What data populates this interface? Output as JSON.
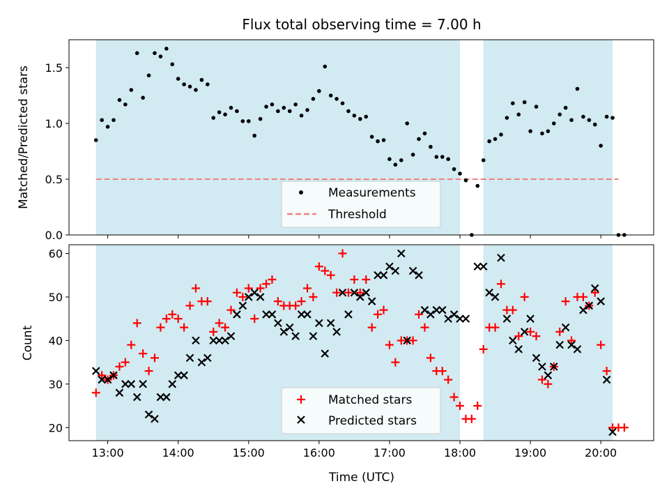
{
  "chart_data": [
    {
      "type": "scatter",
      "title": "Flux total observing time = 7.00 h",
      "xlabel": "",
      "ylabel": "Matched/Predicted stars",
      "xlim": [
        "12:27",
        "20:45"
      ],
      "ylim": [
        0,
        1.75
      ],
      "yticks": [
        0.0,
        0.5,
        1.0,
        1.5
      ],
      "ytick_labels": [
        "0.0",
        "0.5",
        "1.0",
        "1.5"
      ],
      "observing_windows": [
        [
          "12:50",
          "18:00"
        ],
        [
          "18:20",
          "20:10"
        ]
      ],
      "window_color": "#add8e6",
      "threshold": {
        "name": "Threshold",
        "value": 0.5,
        "color": "#f08080",
        "style": "dashed",
        "x_range": [
          "12:50",
          "20:15"
        ]
      },
      "legend": {
        "position": "lower-center",
        "entries": [
          "Measurements",
          "Threshold"
        ]
      },
      "series": [
        {
          "name": "Measurements",
          "marker": "dot",
          "color": "#000000",
          "x": [
            "12:50",
            "12:55",
            "13:00",
            "13:05",
            "13:10",
            "13:15",
            "13:20",
            "13:25",
            "13:30",
            "13:35",
            "13:40",
            "13:45",
            "13:50",
            "13:55",
            "14:00",
            "14:05",
            "14:10",
            "14:15",
            "14:20",
            "14:25",
            "14:30",
            "14:35",
            "14:40",
            "14:45",
            "14:50",
            "14:55",
            "15:00",
            "15:05",
            "15:10",
            "15:15",
            "15:20",
            "15:25",
            "15:30",
            "15:35",
            "15:40",
            "15:45",
            "15:50",
            "15:55",
            "16:00",
            "16:05",
            "16:10",
            "16:15",
            "16:20",
            "16:25",
            "16:30",
            "16:35",
            "16:40",
            "16:45",
            "16:50",
            "16:55",
            "17:00",
            "17:05",
            "17:10",
            "17:15",
            "17:20",
            "17:25",
            "17:30",
            "17:35",
            "17:40",
            "17:45",
            "17:50",
            "17:55",
            "18:00",
            "18:05",
            "18:10",
            "18:15",
            "18:20",
            "18:25",
            "18:30",
            "18:35",
            "18:40",
            "18:45",
            "18:50",
            "18:55",
            "19:00",
            "19:05",
            "19:10",
            "19:15",
            "19:20",
            "19:25",
            "19:30",
            "19:35",
            "19:40",
            "19:45",
            "19:50",
            "19:55",
            "20:00",
            "20:05",
            "20:10",
            "20:15",
            "20:20"
          ],
          "y": [
            0.85,
            1.03,
            0.97,
            1.03,
            1.21,
            1.17,
            1.3,
            1.63,
            1.23,
            1.43,
            1.63,
            1.6,
            1.67,
            1.53,
            1.4,
            1.35,
            1.33,
            1.3,
            1.39,
            1.35,
            1.05,
            1.1,
            1.08,
            1.14,
            1.11,
            1.02,
            1.02,
            0.89,
            1.04,
            1.15,
            1.17,
            1.11,
            1.14,
            1.11,
            1.17,
            1.07,
            1.12,
            1.22,
            1.29,
            1.51,
            1.25,
            1.22,
            1.18,
            1.11,
            1.07,
            1.04,
            1.06,
            0.88,
            0.84,
            0.85,
            0.68,
            0.63,
            0.67,
            1.0,
            0.72,
            0.86,
            0.91,
            0.79,
            0.7,
            0.7,
            0.68,
            0.59,
            0.55,
            0.49,
            0.0,
            0.44,
            0.67,
            0.84,
            0.86,
            0.9,
            1.05,
            1.18,
            1.08,
            1.19,
            0.93,
            1.15,
            0.91,
            0.93,
            1.0,
            1.08,
            1.14,
            1.03,
            1.31,
            1.06,
            1.03,
            0.99,
            0.8,
            1.06,
            1.05,
            0.0,
            0.0
          ]
        }
      ]
    },
    {
      "type": "scatter",
      "title": "",
      "xlabel": "Time (UTC)",
      "ylabel": "Count",
      "xlim": [
        "12:27",
        "20:45"
      ],
      "ylim": [
        17,
        62
      ],
      "xticks": [
        "13:00",
        "14:00",
        "15:00",
        "16:00",
        "17:00",
        "18:00",
        "19:00",
        "20:00"
      ],
      "yticks": [
        20,
        30,
        40,
        50,
        60
      ],
      "observing_windows": [
        [
          "12:50",
          "18:00"
        ],
        [
          "18:20",
          "20:10"
        ]
      ],
      "window_color": "#add8e6",
      "legend": {
        "position": "lower-center",
        "entries": [
          "Matched stars",
          "Predicted stars"
        ]
      },
      "series": [
        {
          "name": "Matched stars",
          "marker": "plus",
          "color": "#ff0000",
          "x": [
            "12:50",
            "12:55",
            "13:00",
            "13:05",
            "13:10",
            "13:15",
            "13:20",
            "13:25",
            "13:30",
            "13:35",
            "13:40",
            "13:45",
            "13:50",
            "13:55",
            "14:00",
            "14:05",
            "14:10",
            "14:15",
            "14:20",
            "14:25",
            "14:30",
            "14:35",
            "14:40",
            "14:45",
            "14:50",
            "14:55",
            "15:00",
            "15:05",
            "15:10",
            "15:15",
            "15:20",
            "15:25",
            "15:30",
            "15:35",
            "15:40",
            "15:45",
            "15:50",
            "15:55",
            "16:00",
            "16:05",
            "16:10",
            "16:15",
            "16:20",
            "16:25",
            "16:30",
            "16:35",
            "16:40",
            "16:45",
            "16:50",
            "16:55",
            "17:00",
            "17:05",
            "17:10",
            "17:15",
            "17:20",
            "17:25",
            "17:30",
            "17:35",
            "17:40",
            "17:45",
            "17:50",
            "17:55",
            "18:00",
            "18:05",
            "18:10",
            "18:15",
            "18:20",
            "18:25",
            "18:30",
            "18:35",
            "18:40",
            "18:45",
            "18:50",
            "18:55",
            "19:00",
            "19:05",
            "19:10",
            "19:15",
            "19:20",
            "19:25",
            "19:30",
            "19:35",
            "19:40",
            "19:45",
            "19:50",
            "19:55",
            "20:00",
            "20:05",
            "20:10",
            "20:15",
            "20:20"
          ],
          "y": [
            28,
            32,
            31,
            32,
            34,
            35,
            39,
            44,
            37,
            33,
            36,
            43,
            45,
            46,
            45,
            43,
            48,
            52,
            49,
            49,
            42,
            44,
            43,
            47,
            51,
            50,
            52,
            45,
            52,
            53,
            54,
            49,
            48,
            48,
            48,
            49,
            52,
            50,
            57,
            56,
            55,
            51,
            60,
            51,
            54,
            51,
            54,
            43,
            46,
            47,
            39,
            35,
            40,
            40,
            40,
            46,
            43,
            36,
            33,
            33,
            31,
            27,
            25,
            22,
            22,
            25,
            38,
            43,
            43,
            53,
            47,
            47,
            41,
            50,
            42,
            41,
            31,
            30,
            34,
            42,
            49,
            40,
            50,
            50,
            48,
            51,
            39,
            33,
            20,
            20,
            20
          ]
        },
        {
          "name": "Predicted stars",
          "marker": "x",
          "color": "#000000",
          "x": [
            "12:50",
            "12:55",
            "13:00",
            "13:05",
            "13:10",
            "13:15",
            "13:20",
            "13:25",
            "13:30",
            "13:35",
            "13:40",
            "13:45",
            "13:50",
            "13:55",
            "14:00",
            "14:05",
            "14:10",
            "14:15",
            "14:20",
            "14:25",
            "14:30",
            "14:35",
            "14:40",
            "14:45",
            "14:50",
            "14:55",
            "15:00",
            "15:05",
            "15:10",
            "15:15",
            "15:20",
            "15:25",
            "15:30",
            "15:35",
            "15:40",
            "15:45",
            "15:50",
            "15:55",
            "16:00",
            "16:05",
            "16:10",
            "16:15",
            "16:20",
            "16:25",
            "16:30",
            "16:35",
            "16:40",
            "16:45",
            "16:50",
            "16:55",
            "17:00",
            "17:05",
            "17:10",
            "17:15",
            "17:20",
            "17:25",
            "17:30",
            "17:35",
            "17:40",
            "17:45",
            "17:50",
            "17:55",
            "18:00",
            "18:05",
            "18:15",
            "18:20",
            "18:25",
            "18:30",
            "18:35",
            "18:40",
            "18:45",
            "18:50",
            "18:55",
            "19:00",
            "19:05",
            "19:10",
            "19:15",
            "19:20",
            "19:25",
            "19:30",
            "19:35",
            "19:40",
            "19:45",
            "19:50",
            "19:55",
            "20:00",
            "20:05",
            "20:10"
          ],
          "y": [
            33,
            31,
            31,
            32,
            28,
            30,
            30,
            27,
            30,
            23,
            22,
            27,
            27,
            30,
            32,
            32,
            36,
            40,
            35,
            36,
            40,
            40,
            40,
            41,
            46,
            48,
            50,
            51,
            50,
            46,
            46,
            44,
            42,
            43,
            41,
            46,
            46,
            41,
            44,
            37,
            44,
            42,
            51,
            46,
            51,
            50,
            51,
            49,
            55,
            55,
            57,
            56,
            60,
            40,
            56,
            55,
            47,
            46,
            47,
            47,
            45,
            46,
            45,
            45,
            57,
            57,
            51,
            50,
            59,
            45,
            40,
            38,
            42,
            45,
            36,
            34,
            32,
            34,
            39,
            43,
            39,
            38,
            47,
            48,
            52,
            49,
            31,
            19
          ]
        }
      ]
    }
  ]
}
